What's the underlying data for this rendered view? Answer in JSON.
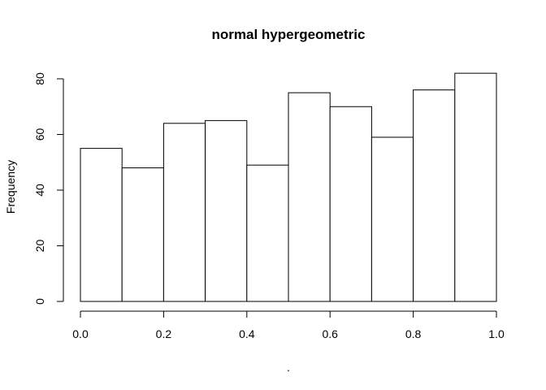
{
  "chart_data": {
    "type": "bar",
    "title": "normal hypergeometric",
    "xlabel": ".",
    "ylabel": "Frequency",
    "bin_edges": [
      0.0,
      0.1,
      0.2,
      0.3,
      0.4,
      0.5,
      0.6,
      0.7,
      0.8,
      0.9,
      1.0
    ],
    "values": [
      55,
      48,
      64,
      65,
      49,
      75,
      70,
      59,
      76,
      82
    ],
    "xlim": [
      0.0,
      1.0
    ],
    "ylim": [
      0,
      82
    ],
    "x_ticks": [
      0.0,
      0.2,
      0.4,
      0.6,
      0.8,
      1.0
    ],
    "x_tick_labels": [
      "0.0",
      "0.2",
      "0.4",
      "0.6",
      "0.8",
      "1.0"
    ],
    "y_ticks": [
      0,
      20,
      40,
      60,
      80
    ],
    "y_tick_labels": [
      "0",
      "20",
      "40",
      "60",
      "80"
    ],
    "grid": false,
    "bar_fill": "#ffffff",
    "bar_stroke": "#000000"
  }
}
